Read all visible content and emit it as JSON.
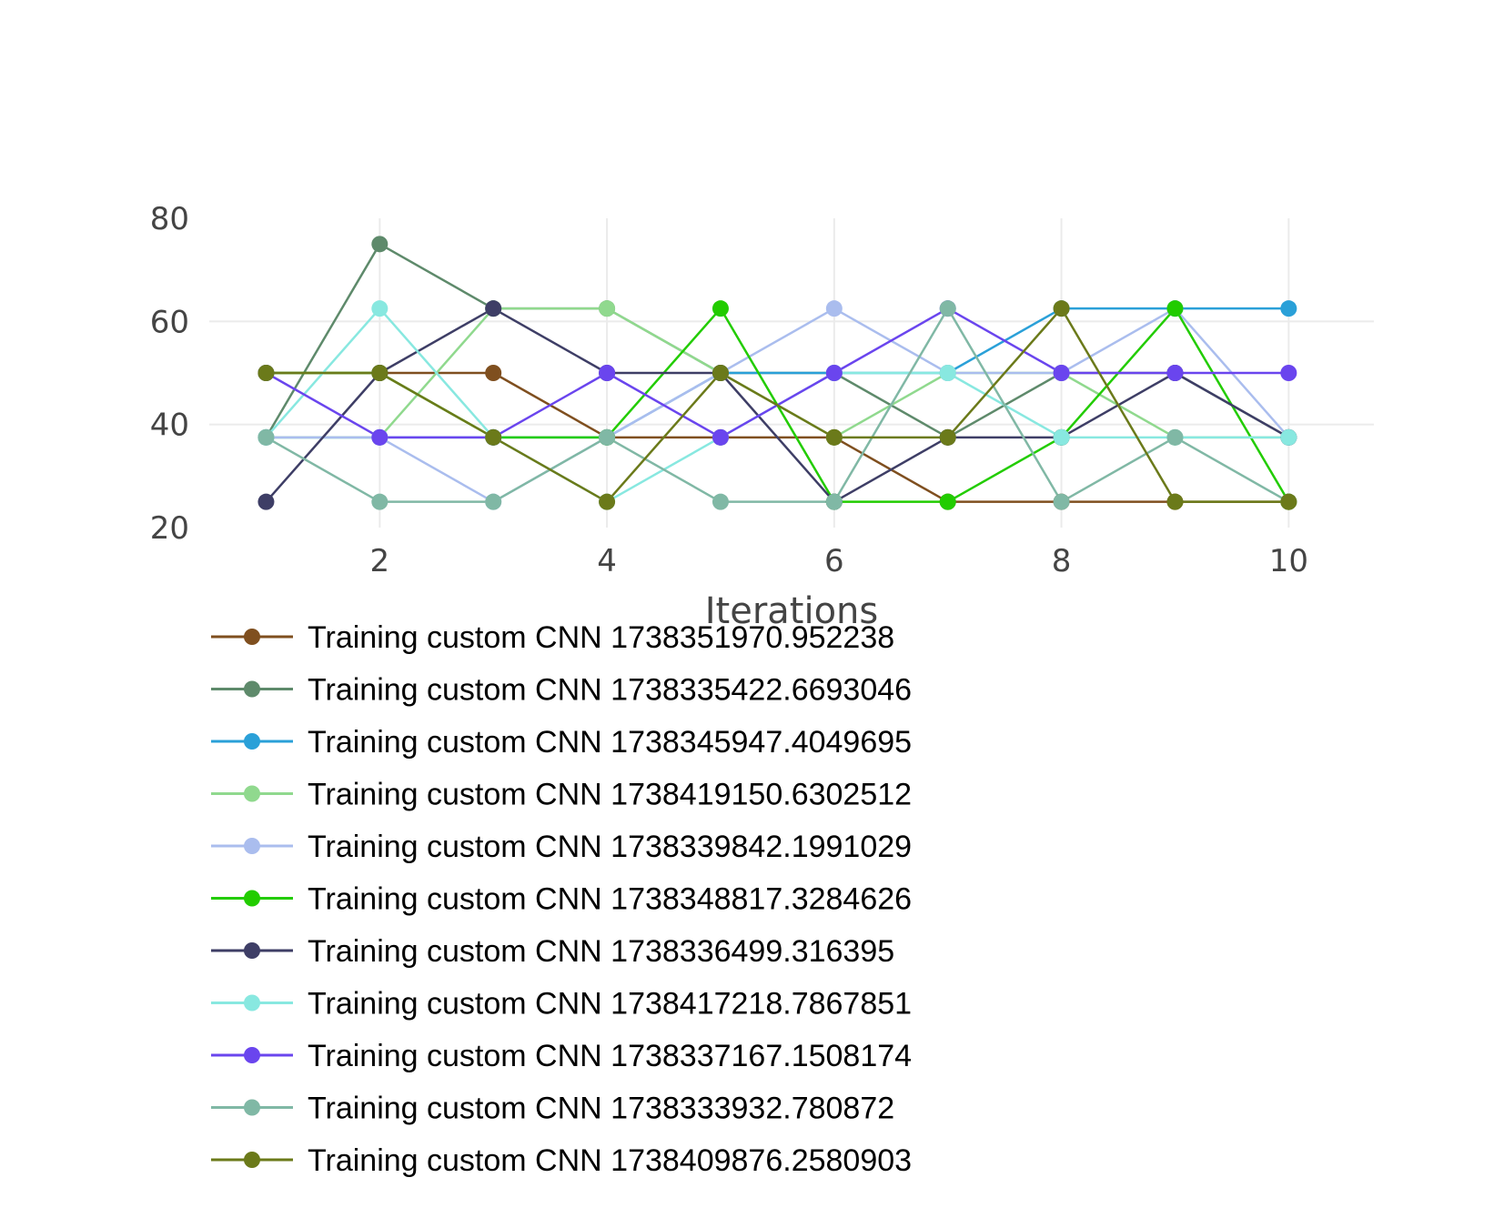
{
  "chart_data": {
    "type": "line",
    "xlabel": "Iterations",
    "ylabel": "",
    "xlim": [
      0.5,
      10.75
    ],
    "ylim": [
      20,
      80
    ],
    "x_ticks": [
      2,
      4,
      6,
      8,
      10
    ],
    "y_ticks": [
      20,
      40,
      60,
      80
    ],
    "grid": true,
    "legend_position": "bottom",
    "x": [
      1,
      2,
      3,
      4,
      5,
      6,
      7,
      8,
      9,
      10
    ],
    "series": [
      {
        "name": "Training custom CNN 1738351970.952238",
        "color": "#7f4f1f",
        "values": [
          50,
          50,
          50,
          37.5,
          37.5,
          37.5,
          25,
          25,
          25,
          25
        ]
      },
      {
        "name": "Training custom CNN 1738335422.6693046",
        "color": "#5e8a6b",
        "values": [
          37.5,
          75,
          62.5,
          62.5,
          50,
          50,
          37.5,
          50,
          50,
          37.5
        ]
      },
      {
        "name": "Training custom CNN 1738345947.4049695",
        "color": "#2aa0d8",
        "values": [
          37.5,
          37.5,
          37.5,
          37.5,
          50,
          50,
          50,
          62.5,
          62.5,
          62.5
        ]
      },
      {
        "name": "Training custom CNN 1738419150.6302512",
        "color": "#90d98e",
        "values": [
          37.5,
          37.5,
          62.5,
          62.5,
          50,
          37.5,
          50,
          50,
          37.5,
          37.5
        ]
      },
      {
        "name": "Training custom CNN 1738339842.1991029",
        "color": "#aabdee",
        "values": [
          37.5,
          37.5,
          25,
          37.5,
          50,
          62.5,
          50,
          50,
          62.5,
          37.5
        ]
      },
      {
        "name": "Training custom CNN 1738348817.3284626",
        "color": "#22cc00",
        "values": [
          50,
          50,
          37.5,
          37.5,
          62.5,
          25,
          25,
          37.5,
          62.5,
          25
        ]
      },
      {
        "name": "Training custom CNN 1738336499.316395",
        "color": "#3e3e66",
        "values": [
          25,
          50,
          62.5,
          50,
          50,
          25,
          37.5,
          37.5,
          50,
          37.5
        ]
      },
      {
        "name": "Training custom CNN 1738417218.7867851",
        "color": "#88e8e0",
        "values": [
          37.5,
          62.5,
          37.5,
          25,
          37.5,
          50,
          50,
          37.5,
          37.5,
          37.5
        ]
      },
      {
        "name": "Training custom CNN 1738337167.1508174",
        "color": "#6a45ee",
        "values": [
          50,
          37.5,
          37.5,
          50,
          37.5,
          50,
          62.5,
          50,
          50,
          50
        ]
      },
      {
        "name": "Training custom CNN 1738333932.780872",
        "color": "#80b8a5",
        "values": [
          37.5,
          25,
          25,
          37.5,
          25,
          25,
          62.5,
          25,
          37.5,
          25
        ]
      },
      {
        "name": "Training custom CNN 1738409876.2580903",
        "color": "#6b7a1a",
        "values": [
          50,
          50,
          37.5,
          25,
          50,
          37.5,
          37.5,
          62.5,
          25,
          25
        ]
      }
    ]
  }
}
